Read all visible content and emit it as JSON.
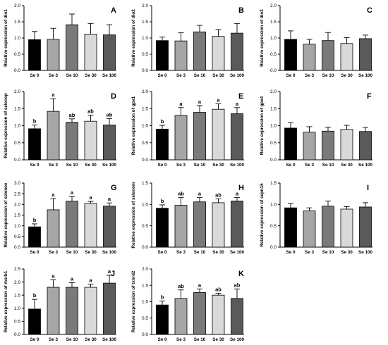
{
  "figure": {
    "categories": [
      "Se 0",
      "Se 3",
      "Se 10",
      "Se 30",
      "Se 100"
    ],
    "bar_colors": [
      "#000000",
      "#a6a6a6",
      "#7a7a7a",
      "#d9d9d9",
      "#5a5a5a"
    ]
  },
  "chart_data": [
    {
      "type": "bar",
      "letter": "A",
      "ylabel": "Relative expression of dio1",
      "ylim": [
        0,
        2.0
      ],
      "yticks": [
        "0.0",
        "0.5",
        "1.0",
        "1.5",
        "2.0"
      ],
      "categories": [
        "Se 0",
        "Se 3",
        "Se 10",
        "Se 30",
        "Se 100"
      ],
      "values": [
        0.95,
        0.96,
        1.41,
        1.12,
        1.1
      ],
      "errors": [
        0.25,
        0.34,
        0.33,
        0.33,
        0.31
      ],
      "sig": [
        "",
        "",
        "",
        "",
        ""
      ]
    },
    {
      "type": "bar",
      "letter": "B",
      "ylabel": "Relative expression of dio2",
      "ylim": [
        0,
        2.0
      ],
      "yticks": [
        "0.0",
        "0.5",
        "1.0",
        "1.5",
        "2.0"
      ],
      "categories": [
        "Se 0",
        "Se 3",
        "Se 10",
        "Se 30",
        "Se 100"
      ],
      "values": [
        0.92,
        0.91,
        1.19,
        1.05,
        1.15
      ],
      "errors": [
        0.11,
        0.25,
        0.2,
        0.21,
        0.3
      ],
      "sig": [
        "",
        "",
        "",
        "",
        ""
      ]
    },
    {
      "type": "bar",
      "letter": "C",
      "ylabel": "Relative expression of dio3",
      "ylim": [
        0,
        2.0
      ],
      "yticks": [
        "0.0",
        "0.5",
        "1.0",
        "1.5",
        "2.0"
      ],
      "categories": [
        "Se 0",
        "Se 3",
        "Se 10",
        "Se 30",
        "Se 100"
      ],
      "values": [
        0.96,
        0.81,
        0.92,
        0.83,
        0.98
      ],
      "errors": [
        0.26,
        0.15,
        0.25,
        0.18,
        0.11
      ],
      "sig": [
        "",
        "",
        "",
        "",
        ""
      ]
    },
    {
      "type": "bar",
      "letter": "D",
      "ylabel": "Relative expression of selenop",
      "ylim": [
        0,
        2.0
      ],
      "yticks": [
        "0.0",
        "0.5",
        "1.0",
        "1.5",
        "2.0"
      ],
      "categories": [
        "Se 0",
        "Se 3",
        "Se 10",
        "Se 30",
        "Se 100"
      ],
      "values": [
        0.91,
        1.42,
        1.1,
        1.13,
        1.02
      ],
      "errors": [
        0.11,
        0.37,
        0.1,
        0.18,
        0.19
      ],
      "sig": [
        "b",
        "a",
        "ab",
        "ab",
        "ab"
      ]
    },
    {
      "type": "bar",
      "letter": "E",
      "ylabel": "Relative expression of gpx1",
      "ylim": [
        0,
        2.0
      ],
      "yticks": [
        "0.0",
        "0.5",
        "1.0",
        "1.5",
        "2.0"
      ],
      "categories": [
        "Se 0",
        "Se 3",
        "Se 10",
        "Se 30",
        "Se 100"
      ],
      "values": [
        0.9,
        1.3,
        1.39,
        1.48,
        1.35
      ],
      "errors": [
        0.11,
        0.23,
        0.2,
        0.16,
        0.18
      ],
      "sig": [
        "b",
        "a",
        "a",
        "a",
        "a"
      ]
    },
    {
      "type": "bar",
      "letter": "F",
      "ylabel": "Relative expression of gpx4",
      "ylim": [
        0,
        2.0
      ],
      "yticks": [
        "0.0",
        "0.5",
        "1.0",
        "1.5",
        "2.0"
      ],
      "categories": [
        "Se 0",
        "Se 3",
        "Se 10",
        "Se 30",
        "Se 100"
      ],
      "values": [
        0.93,
        0.81,
        0.84,
        0.89,
        0.83
      ],
      "errors": [
        0.16,
        0.16,
        0.12,
        0.12,
        0.12
      ],
      "sig": [
        "",
        "",
        "",
        "",
        ""
      ]
    },
    {
      "type": "bar",
      "letter": "G",
      "ylabel": "Relative expression of selenoe",
      "ylim": [
        0,
        3.0
      ],
      "yticks": [
        "0.0",
        "0.5",
        "1.0",
        "1.5",
        "2.0",
        "2.5",
        "3.0"
      ],
      "categories": [
        "Se 0",
        "Se 3",
        "Se 10",
        "Se 30",
        "Se 100"
      ],
      "values": [
        0.95,
        1.75,
        2.15,
        2.05,
        1.92
      ],
      "errors": [
        0.14,
        0.52,
        0.22,
        0.09,
        0.15
      ],
      "sig": [
        "b",
        "a",
        "a",
        "a",
        "a"
      ]
    },
    {
      "type": "bar",
      "letter": "H",
      "ylabel": "Relative expression of selenom",
      "ylim": [
        0,
        1.5
      ],
      "yticks": [
        "0.0",
        "0.5",
        "1.0",
        "1.5"
      ],
      "categories": [
        "Se 0",
        "Se 3",
        "Se 10",
        "Se 30",
        "Se 100"
      ],
      "values": [
        0.91,
        0.98,
        1.06,
        1.04,
        1.08
      ],
      "errors": [
        0.08,
        0.18,
        0.1,
        0.09,
        0.08
      ],
      "sig": [
        "b",
        "ab",
        "a",
        "ab",
        "a"
      ]
    },
    {
      "type": "bar",
      "letter": "I",
      "ylabel": "Relative expression of sepn15",
      "ylim": [
        0,
        1.5
      ],
      "yticks": [
        "0.0",
        "0.5",
        "1.0",
        "1.5"
      ],
      "categories": [
        "Se 0",
        "Se 3",
        "Se 10",
        "Se 30",
        "Se 100"
      ],
      "values": [
        0.92,
        0.85,
        0.96,
        0.89,
        0.94
      ],
      "errors": [
        0.1,
        0.07,
        0.12,
        0.06,
        0.1
      ],
      "sig": [
        "",
        "",
        "",
        "",
        ""
      ]
    },
    {
      "type": "bar",
      "letter": "J",
      "ylabel": "Relative expression of msrb1",
      "ylim": [
        0,
        2.5
      ],
      "yticks": [
        "0.0",
        "0.5",
        "1.0",
        "1.5",
        "2.0",
        "2.5"
      ],
      "categories": [
        "Se 0",
        "Se 3",
        "Se 10",
        "Se 30",
        "Se 100"
      ],
      "values": [
        0.97,
        1.8,
        1.8,
        1.8,
        1.96
      ],
      "errors": [
        0.37,
        0.29,
        0.18,
        0.12,
        0.3
      ],
      "sig": [
        "b",
        "a",
        "a",
        "a",
        "a"
      ]
    },
    {
      "type": "bar",
      "letter": "K",
      "ylabel": "Relative expression of txnrd2",
      "ylim": [
        0,
        2.0
      ],
      "yticks": [
        "0.0",
        "0.5",
        "1.0",
        "1.5",
        "2.0"
      ],
      "categories": [
        "Se 0",
        "Se 3",
        "Se 10",
        "Se 30",
        "Se 100"
      ],
      "values": [
        0.9,
        1.1,
        1.28,
        1.2,
        1.1
      ],
      "errors": [
        0.12,
        0.26,
        0.11,
        0.06,
        0.29
      ],
      "sig": [
        "b",
        "ab",
        "a",
        "ab",
        "ab"
      ]
    }
  ]
}
